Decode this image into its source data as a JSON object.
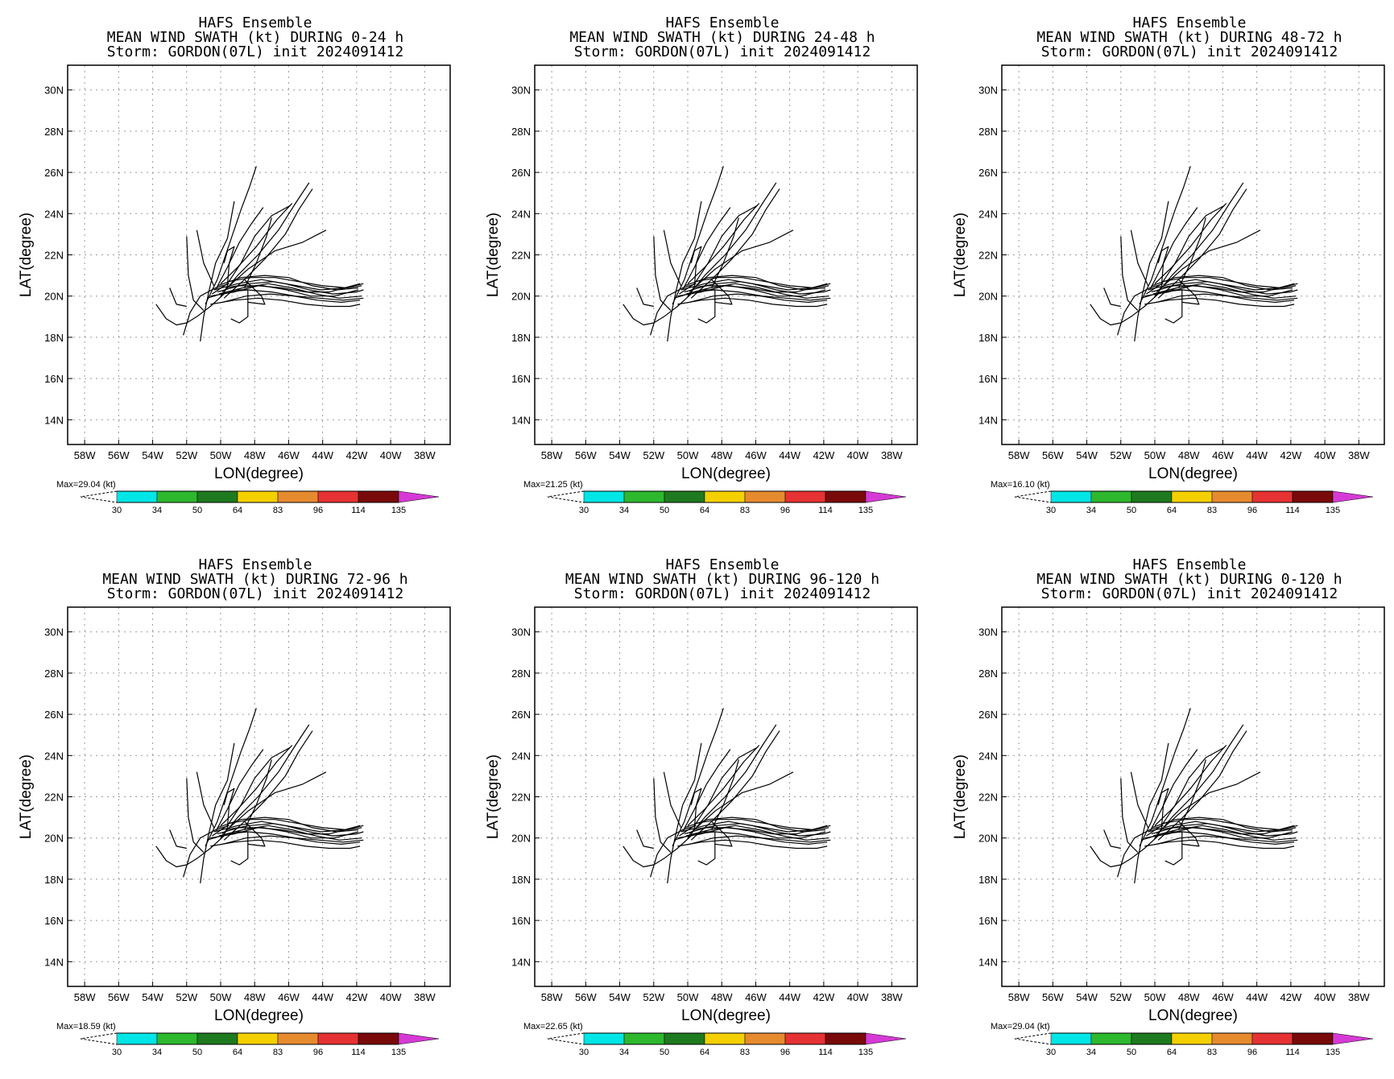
{
  "colorbar": {
    "levels": [
      "30",
      "34",
      "50",
      "64",
      "83",
      "96",
      "114",
      "135"
    ],
    "colors": [
      "#00e5e5",
      "#2db82d",
      "#1e7a1e",
      "#f5d000",
      "#e68a2e",
      "#e63232",
      "#7a0a0a",
      "#d63ad6"
    ]
  },
  "chart_data": [
    {
      "type": "line",
      "title_lines": [
        "HAFS Ensemble",
        "MEAN WIND SWATH (kt) DURING  0-24 h",
        "Storm: GORDON(07L) init 2024091412"
      ],
      "xlabel": "LON(degree)",
      "ylabel": "LAT(degree)",
      "xlim": [
        -59,
        -36.5
      ],
      "ylim": [
        12.8,
        31.2
      ],
      "xticks": [
        "58W",
        "56W",
        "54W",
        "52W",
        "50W",
        "48W",
        "46W",
        "44W",
        "42W",
        "40W",
        "38W"
      ],
      "yticks": [
        "14N",
        "16N",
        "18N",
        "20N",
        "22N",
        "24N",
        "26N",
        "28N",
        "30N"
      ],
      "max_label": "Max=29.04 (kt)",
      "grid": true
    },
    {
      "type": "line",
      "title_lines": [
        "HAFS Ensemble",
        "MEAN WIND SWATH (kt) DURING 24-48 h",
        "Storm: GORDON(07L) init 2024091412"
      ],
      "xlabel": "LON(degree)",
      "ylabel": "LAT(degree)",
      "xlim": [
        -59,
        -36.5
      ],
      "ylim": [
        12.8,
        31.2
      ],
      "xticks": [
        "58W",
        "56W",
        "54W",
        "52W",
        "50W",
        "48W",
        "46W",
        "44W",
        "42W",
        "40W",
        "38W"
      ],
      "yticks": [
        "14N",
        "16N",
        "18N",
        "20N",
        "22N",
        "24N",
        "26N",
        "28N",
        "30N"
      ],
      "max_label": "Max=21.25 (kt)",
      "grid": true
    },
    {
      "type": "line",
      "title_lines": [
        "HAFS Ensemble",
        "MEAN WIND SWATH (kt) DURING 48-72 h",
        "Storm: GORDON(07L) init 2024091412"
      ],
      "xlabel": "LON(degree)",
      "ylabel": "LAT(degree)",
      "xlim": [
        -59,
        -36.5
      ],
      "ylim": [
        12.8,
        31.2
      ],
      "xticks": [
        "58W",
        "56W",
        "54W",
        "52W",
        "50W",
        "48W",
        "46W",
        "44W",
        "42W",
        "40W",
        "38W"
      ],
      "yticks": [
        "14N",
        "16N",
        "18N",
        "20N",
        "22N",
        "24N",
        "26N",
        "28N",
        "30N"
      ],
      "max_label": "Max=16.10 (kt)",
      "grid": true
    },
    {
      "type": "line",
      "title_lines": [
        "HAFS Ensemble",
        "MEAN WIND SWATH (kt) DURING 72-96 h",
        "Storm: GORDON(07L) init 2024091412"
      ],
      "xlabel": "LON(degree)",
      "ylabel": "LAT(degree)",
      "xlim": [
        -59,
        -36.5
      ],
      "ylim": [
        12.8,
        31.2
      ],
      "xticks": [
        "58W",
        "56W",
        "54W",
        "52W",
        "50W",
        "48W",
        "46W",
        "44W",
        "42W",
        "40W",
        "38W"
      ],
      "yticks": [
        "14N",
        "16N",
        "18N",
        "20N",
        "22N",
        "24N",
        "26N",
        "28N",
        "30N"
      ],
      "max_label": "Max=18.59 (kt)",
      "grid": true
    },
    {
      "type": "line",
      "title_lines": [
        "HAFS Ensemble",
        "MEAN WIND SWATH (kt) DURING 96-120 h",
        "Storm: GORDON(07L) init 2024091412"
      ],
      "xlabel": "LON(degree)",
      "ylabel": "LAT(degree)",
      "xlim": [
        -59,
        -36.5
      ],
      "ylim": [
        12.8,
        31.2
      ],
      "xticks": [
        "58W",
        "56W",
        "54W",
        "52W",
        "50W",
        "48W",
        "46W",
        "44W",
        "42W",
        "40W",
        "38W"
      ],
      "yticks": [
        "14N",
        "16N",
        "18N",
        "20N",
        "22N",
        "24N",
        "26N",
        "28N",
        "30N"
      ],
      "max_label": "Max=22.65 (kt)",
      "grid": true
    },
    {
      "type": "line",
      "title_lines": [
        "HAFS Ensemble",
        "MEAN WIND SWATH (kt) DURING 0-120 h",
        "Storm: GORDON(07L) init 2024091412"
      ],
      "xlabel": "LON(degree)",
      "ylabel": "LAT(degree)",
      "xlim": [
        -59,
        -36.5
      ],
      "ylim": [
        12.8,
        31.2
      ],
      "xticks": [
        "58W",
        "56W",
        "54W",
        "52W",
        "50W",
        "48W",
        "46W",
        "44W",
        "42W",
        "40W",
        "38W"
      ],
      "yticks": [
        "14N",
        "16N",
        "18N",
        "20N",
        "22N",
        "24N",
        "26N",
        "28N",
        "30N"
      ],
      "max_label": "Max=29.04 (kt)",
      "grid": true
    }
  ],
  "tracks": [
    [
      [
        -53.8,
        19.6
      ],
      [
        -53.2,
        18.9
      ],
      [
        -52.6,
        18.6
      ],
      [
        -52.0,
        18.7
      ],
      [
        -51.4,
        19.0
      ],
      [
        -50.6,
        19.5
      ],
      [
        -49.8,
        20.1
      ]
    ],
    [
      [
        -52.2,
        18.1
      ],
      [
        -51.8,
        19.2
      ],
      [
        -51.2,
        20.0
      ],
      [
        -50.3,
        20.4
      ],
      [
        -49.5,
        20.6
      ]
    ],
    [
      [
        -53.0,
        20.4
      ],
      [
        -52.6,
        19.6
      ],
      [
        -52.0,
        19.5
      ]
    ],
    [
      [
        -51.2,
        17.8
      ],
      [
        -51.0,
        19.0
      ],
      [
        -50.7,
        20.2
      ],
      [
        -50.3,
        21.6
      ],
      [
        -49.6,
        22.8
      ],
      [
        -49.2,
        24.6
      ]
    ],
    [
      [
        -52.0,
        22.9
      ],
      [
        -51.9,
        21.0
      ],
      [
        -51.6,
        19.8
      ],
      [
        -51.0,
        19.3
      ]
    ],
    [
      [
        -51.4,
        23.2
      ],
      [
        -51.0,
        21.6
      ],
      [
        -50.4,
        20.5
      ]
    ],
    [
      [
        -50.9,
        19.6
      ],
      [
        -50.2,
        20.8
      ],
      [
        -49.5,
        22.5
      ],
      [
        -48.8,
        24.2
      ],
      [
        -48.3,
        25.3
      ],
      [
        -47.9,
        26.3
      ]
    ],
    [
      [
        -50.3,
        20.3
      ],
      [
        -49.6,
        21.4
      ],
      [
        -48.9,
        22.6
      ],
      [
        -48.2,
        23.5
      ],
      [
        -47.5,
        24.3
      ]
    ],
    [
      [
        -50.0,
        20.0
      ],
      [
        -49.0,
        21.0
      ],
      [
        -47.8,
        22.0
      ],
      [
        -46.6,
        23.2
      ],
      [
        -45.6,
        24.5
      ],
      [
        -44.8,
        25.5
      ]
    ],
    [
      [
        -49.8,
        19.9
      ],
      [
        -48.6,
        20.8
      ],
      [
        -47.4,
        21.8
      ],
      [
        -46.2,
        23.0
      ],
      [
        -45.4,
        24.2
      ],
      [
        -44.6,
        25.2
      ]
    ],
    [
      [
        -49.9,
        20.2
      ],
      [
        -48.4,
        21.3
      ],
      [
        -46.8,
        22.2
      ],
      [
        -45.2,
        22.6
      ],
      [
        -43.8,
        23.2
      ]
    ],
    [
      [
        -50.5,
        20.1
      ],
      [
        -49.6,
        20.6
      ],
      [
        -48.8,
        21.6
      ],
      [
        -48.0,
        22.9
      ],
      [
        -47.0,
        23.9
      ],
      [
        -45.9,
        24.4
      ]
    ],
    [
      [
        -50.0,
        20.6
      ],
      [
        -49.0,
        21.4
      ],
      [
        -47.9,
        22.4
      ],
      [
        -46.7,
        23.7
      ],
      [
        -45.8,
        24.5
      ]
    ],
    [
      [
        -48.6,
        20.4
      ],
      [
        -47.9,
        21.6
      ],
      [
        -47.3,
        22.9
      ],
      [
        -47.0,
        23.8
      ]
    ],
    [
      [
        -50.8,
        19.9
      ],
      [
        -49.6,
        20.2
      ],
      [
        -48.4,
        20.3
      ],
      [
        -47.0,
        20.2
      ],
      [
        -45.6,
        20.0
      ],
      [
        -44.2,
        19.9
      ],
      [
        -42.8,
        19.8
      ],
      [
        -41.6,
        19.9
      ]
    ],
    [
      [
        -50.4,
        20.3
      ],
      [
        -49.0,
        20.6
      ],
      [
        -47.6,
        20.8
      ],
      [
        -46.2,
        20.6
      ],
      [
        -44.8,
        20.3
      ],
      [
        -43.4,
        20.1
      ],
      [
        -42.0,
        20.2
      ],
      [
        -41.6,
        20.3
      ]
    ],
    [
      [
        -50.6,
        20.0
      ],
      [
        -49.2,
        20.2
      ],
      [
        -47.8,
        20.5
      ],
      [
        -46.4,
        20.4
      ],
      [
        -45.0,
        20.2
      ],
      [
        -43.6,
        20.2
      ],
      [
        -42.2,
        20.5
      ],
      [
        -41.6,
        20.6
      ]
    ],
    [
      [
        -50.2,
        20.5
      ],
      [
        -48.8,
        20.9
      ],
      [
        -47.4,
        21.0
      ],
      [
        -46.0,
        20.9
      ],
      [
        -44.6,
        20.5
      ],
      [
        -43.2,
        20.3
      ],
      [
        -41.9,
        20.4
      ]
    ],
    [
      [
        -50.6,
        19.6
      ],
      [
        -49.2,
        19.8
      ],
      [
        -47.8,
        19.9
      ],
      [
        -46.4,
        19.8
      ],
      [
        -45.0,
        19.6
      ],
      [
        -43.6,
        19.5
      ],
      [
        -42.4,
        19.5
      ],
      [
        -41.8,
        19.6
      ]
    ],
    [
      [
        -50.1,
        20.1
      ],
      [
        -48.7,
        20.4
      ],
      [
        -47.2,
        20.6
      ],
      [
        -45.8,
        20.4
      ],
      [
        -44.4,
        20.1
      ],
      [
        -43.0,
        19.9
      ],
      [
        -41.7,
        20.0
      ]
    ],
    [
      [
        -49.6,
        20.7
      ],
      [
        -48.2,
        20.9
      ],
      [
        -46.8,
        20.9
      ],
      [
        -45.4,
        20.7
      ],
      [
        -44.0,
        20.5
      ],
      [
        -42.6,
        20.4
      ],
      [
        -41.7,
        20.5
      ]
    ],
    [
      [
        -49.9,
        19.7
      ],
      [
        -48.5,
        20.0
      ],
      [
        -47.1,
        20.1
      ],
      [
        -45.7,
        20.0
      ],
      [
        -44.3,
        19.8
      ],
      [
        -42.9,
        19.7
      ],
      [
        -41.8,
        19.8
      ]
    ],
    [
      [
        -50.2,
        20.2
      ],
      [
        -48.9,
        20.5
      ],
      [
        -47.5,
        20.5
      ],
      [
        -46.1,
        20.3
      ],
      [
        -44.7,
        20.0
      ],
      [
        -43.3,
        20.0
      ],
      [
        -41.9,
        20.3
      ]
    ],
    [
      [
        -49.7,
        20.4
      ],
      [
        -48.3,
        20.6
      ],
      [
        -46.9,
        20.7
      ],
      [
        -45.5,
        20.5
      ],
      [
        -44.1,
        20.3
      ],
      [
        -42.7,
        20.4
      ],
      [
        -41.8,
        20.6
      ]
    ],
    [
      [
        -49.3,
        20.3
      ],
      [
        -48.4,
        20.3
      ],
      [
        -48.4,
        19.0
      ],
      [
        -48.9,
        18.7
      ],
      [
        -49.4,
        18.9
      ]
    ],
    [
      [
        -48.6,
        20.8
      ],
      [
        -47.6,
        20.0
      ],
      [
        -47.4,
        19.6
      ],
      [
        -48.4,
        19.7
      ]
    ],
    [
      [
        -49.6,
        20.5
      ],
      [
        -49.5,
        21.6
      ],
      [
        -49.2,
        22.4
      ],
      [
        -49.6,
        22.2
      ],
      [
        -49.8,
        21.6
      ]
    ]
  ]
}
